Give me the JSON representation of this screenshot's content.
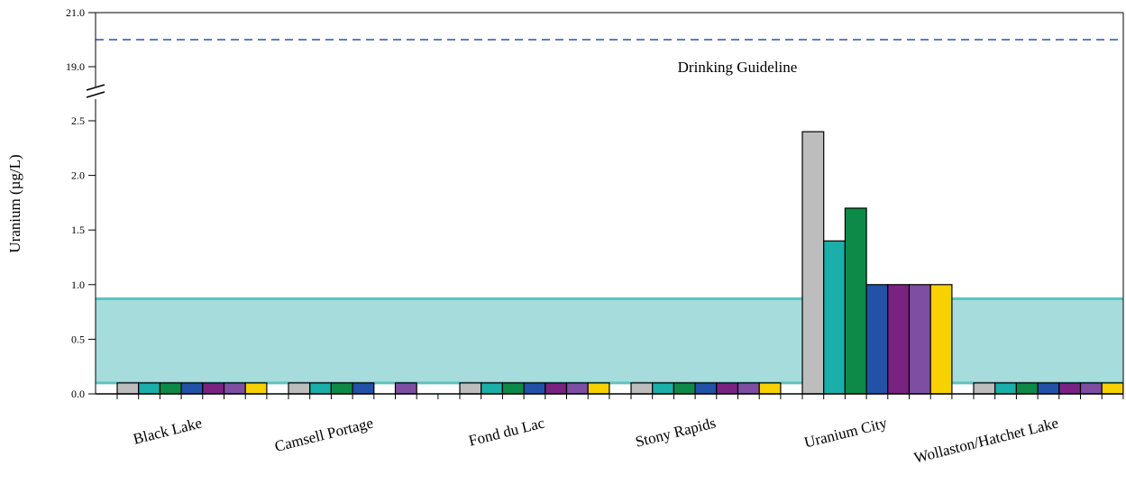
{
  "chart_data": {
    "type": "bar",
    "ylabel": "Uranium (µg/L)",
    "axis_break": {
      "lower_range": [
        0,
        2.5
      ],
      "upper_range": [
        19,
        21
      ]
    },
    "yticks_lower": [
      "0.0",
      "0.5",
      "1.0",
      "1.5",
      "2.0",
      "2.5"
    ],
    "yticks_upper": [
      "19.0",
      "21.0"
    ],
    "categories": [
      "Black Lake",
      "Camsell Portage",
      "Fond du Lac",
      "Stony Rapids",
      "Uranium City",
      "Wollaston/Hatchet Lake"
    ],
    "series_colors": [
      "#bdbdbd",
      "#1aafa8",
      "#0d8a48",
      "#2252a8",
      "#7a2282",
      "#7e4ea2",
      "#f7d100"
    ],
    "values": [
      [
        0.1,
        0.1,
        0.1,
        0.1,
        0.1,
        0.1,
        0.1
      ],
      [
        0.1,
        0.1,
        0.1,
        0.1,
        null,
        0.1,
        null
      ],
      [
        0.1,
        0.1,
        0.1,
        0.1,
        0.1,
        0.1,
        0.1
      ],
      [
        0.1,
        0.1,
        0.1,
        0.1,
        0.1,
        0.1,
        0.1
      ],
      [
        2.4,
        1.4,
        1.7,
        1.0,
        1.0,
        1.0,
        1.0
      ],
      [
        0.1,
        0.1,
        0.1,
        0.1,
        0.1,
        0.1,
        0.1
      ]
    ],
    "guideline": {
      "label": "Drinking Guideline",
      "value": 20,
      "color": "#2a55a0",
      "style": "dashed"
    },
    "reference_band": {
      "lower": 0.1,
      "upper": 0.87,
      "fill": "#a7dcdc",
      "edge": "#5cc4be"
    }
  }
}
